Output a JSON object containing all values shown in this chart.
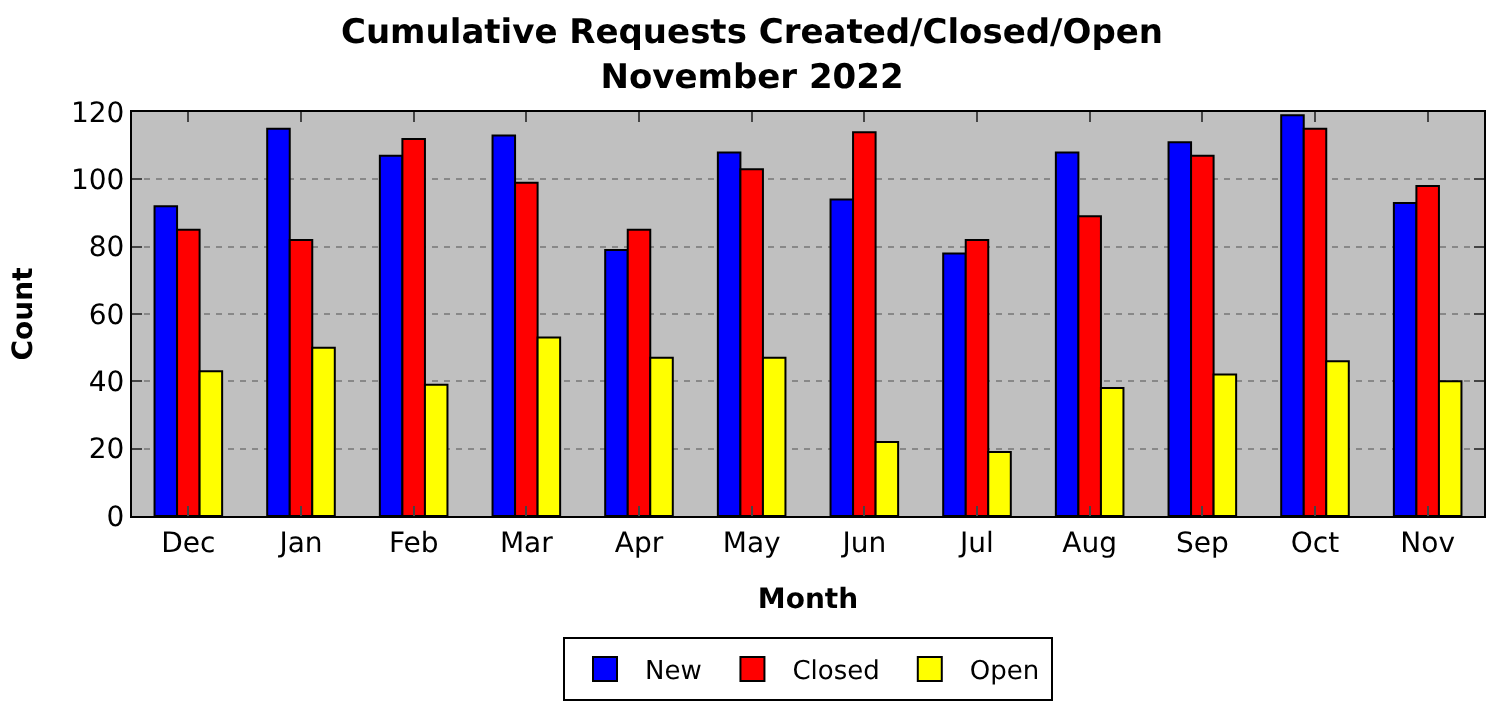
{
  "chart_data": {
    "type": "bar",
    "title": "Cumulative Requests Created/Closed/Open\nNovember 2022",
    "xlabel": "Month",
    "ylabel": "Count",
    "categories": [
      "Dec",
      "Jan",
      "Feb",
      "Mar",
      "Apr",
      "May",
      "Jun",
      "Jul",
      "Aug",
      "Sep",
      "Oct",
      "Nov"
    ],
    "series": [
      {
        "name": "New",
        "color": "#0000ff",
        "values": [
          92,
          115,
          107,
          113,
          79,
          108,
          94,
          78,
          108,
          111,
          119,
          93
        ]
      },
      {
        "name": "Closed",
        "color": "#ff0000",
        "values": [
          85,
          82,
          112,
          99,
          85,
          103,
          114,
          82,
          89,
          107,
          115,
          98
        ]
      },
      {
        "name": "Open",
        "color": "#ffff00",
        "values": [
          43,
          50,
          39,
          53,
          47,
          47,
          22,
          19,
          38,
          42,
          46,
          40
        ]
      }
    ],
    "ylim": [
      0,
      120
    ],
    "yticks": [
      0,
      20,
      40,
      60,
      80,
      100,
      120
    ],
    "grid": "y",
    "legend": "bottom"
  }
}
